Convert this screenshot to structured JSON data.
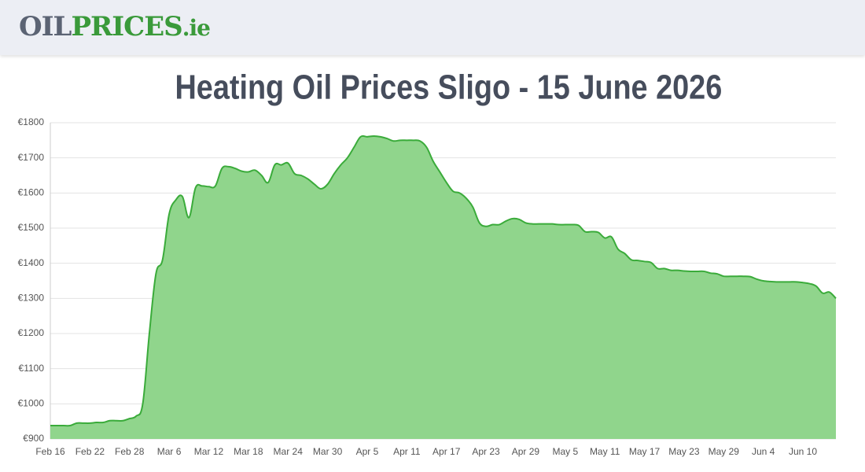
{
  "header": {
    "logo": {
      "oil": "OIL",
      "prices": "PRICES",
      "tld": ".ie"
    }
  },
  "chart_data": {
    "type": "area",
    "title": "Heating Oil Prices Sligo - 15 June 2026",
    "categories": [
      "Feb 16",
      null,
      null,
      null,
      null,
      null,
      "Feb 22",
      null,
      null,
      null,
      null,
      null,
      "Feb 28",
      null,
      null,
      null,
      null,
      null,
      "Mar 6",
      null,
      null,
      null,
      null,
      null,
      "Mar 12",
      null,
      null,
      null,
      null,
      null,
      "Mar 18",
      null,
      null,
      null,
      null,
      null,
      "Mar 24",
      null,
      null,
      null,
      null,
      null,
      "Mar 30",
      null,
      null,
      null,
      null,
      null,
      "Apr 5",
      null,
      null,
      null,
      null,
      null,
      "Apr 11",
      null,
      null,
      null,
      null,
      null,
      "Apr 17",
      null,
      null,
      null,
      null,
      null,
      "Apr 23",
      null,
      null,
      null,
      null,
      null,
      "Apr 29",
      null,
      null,
      null,
      null,
      null,
      "May 5",
      null,
      null,
      null,
      null,
      null,
      "May 11",
      null,
      null,
      null,
      null,
      null,
      "May 17",
      null,
      null,
      null,
      null,
      null,
      "May 23",
      null,
      null,
      null,
      null,
      null,
      "May 29",
      null,
      null,
      null,
      null,
      null,
      "Jun 4",
      null,
      null,
      null,
      null,
      null,
      "Jun 10",
      null,
      null,
      null,
      null,
      null
    ],
    "values": [
      938,
      938,
      938,
      938,
      945,
      945,
      945,
      947,
      947,
      952,
      952,
      952,
      958,
      965,
      1000,
      1200,
      1370,
      1410,
      1540,
      1580,
      1590,
      1530,
      1615,
      1620,
      1618,
      1620,
      1670,
      1675,
      1670,
      1662,
      1660,
      1665,
      1650,
      1630,
      1680,
      1680,
      1685,
      1655,
      1650,
      1640,
      1625,
      1612,
      1625,
      1655,
      1680,
      1700,
      1730,
      1760,
      1760,
      1762,
      1760,
      1755,
      1748,
      1750,
      1750,
      1750,
      1748,
      1730,
      1690,
      1660,
      1630,
      1605,
      1600,
      1585,
      1560,
      1515,
      1505,
      1510,
      1510,
      1520,
      1527,
      1525,
      1515,
      1512,
      1512,
      1512,
      1512,
      1510,
      1510,
      1510,
      1508,
      1490,
      1490,
      1488,
      1472,
      1475,
      1440,
      1428,
      1410,
      1408,
      1405,
      1402,
      1385,
      1385,
      1380,
      1380,
      1378,
      1377,
      1377,
      1377,
      1372,
      1370,
      1363,
      1363,
      1363,
      1363,
      1362,
      1355,
      1350,
      1348,
      1347,
      1347,
      1347,
      1347,
      1345,
      1342,
      1335,
      1315,
      1318,
      1300
    ],
    "color": "#3aab3a",
    "fill_color": "#90d58c",
    "ylim": [
      900,
      1800
    ],
    "yticks": [
      {
        "value": 900,
        "label": "€900"
      },
      {
        "value": 1000,
        "label": "€1000"
      },
      {
        "value": 1100,
        "label": "€1100"
      },
      {
        "value": 1200,
        "label": "€1200"
      },
      {
        "value": 1300,
        "label": "€1300"
      },
      {
        "value": 1400,
        "label": "€1400"
      },
      {
        "value": 1500,
        "label": "€1500"
      },
      {
        "value": 1600,
        "label": "€1600"
      },
      {
        "value": 1700,
        "label": "€1700"
      },
      {
        "value": 1800,
        "label": "€1800"
      }
    ],
    "grid": true
  }
}
